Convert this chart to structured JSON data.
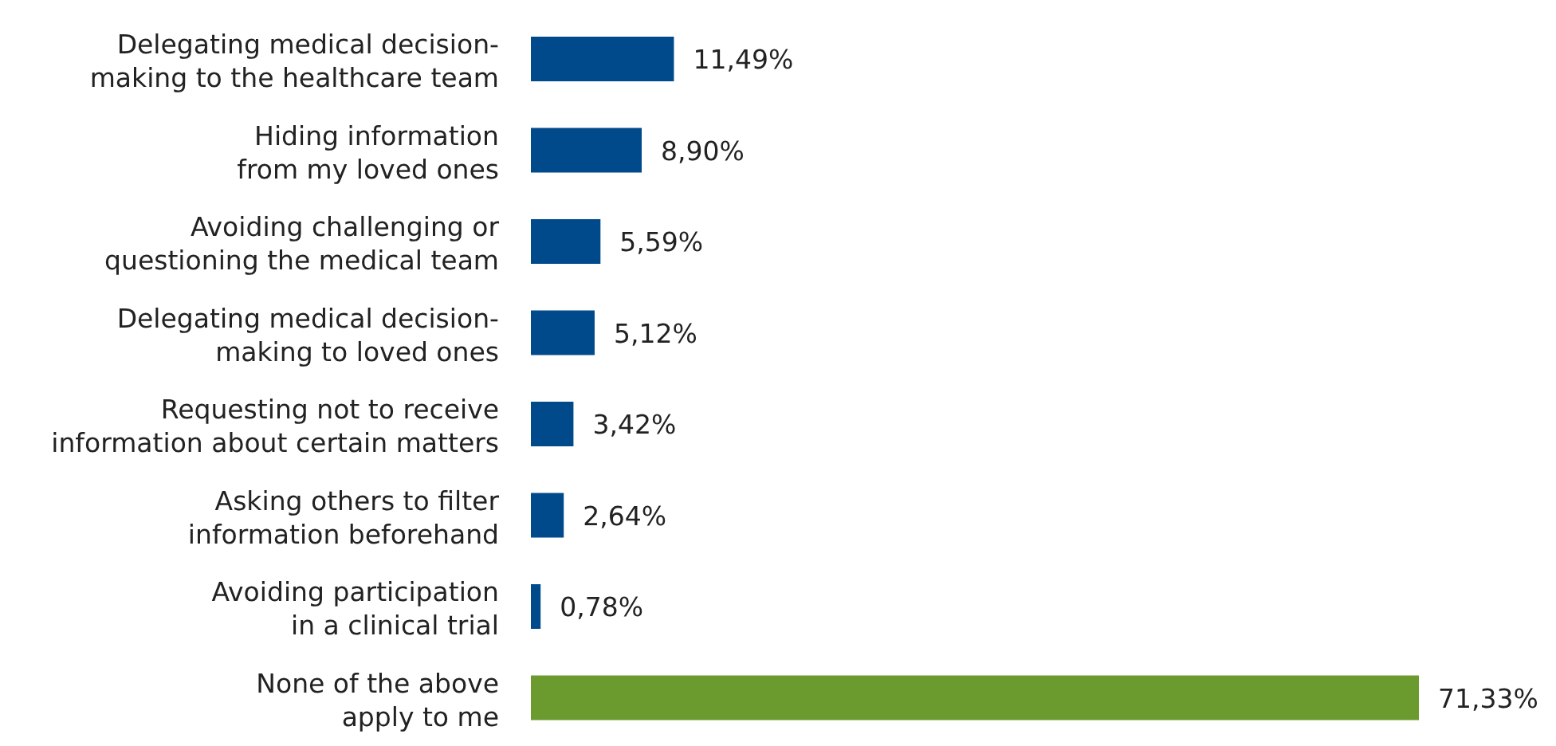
{
  "chart_data": {
    "type": "bar",
    "orientation": "horizontal",
    "categories": [
      "Delegating medical decision-making to the healthcare team",
      "Hiding information from my loved ones",
      "Avoiding challenging or questioning the medical team",
      "Delegating medical decision-making to loved ones",
      "Requesting not to receive information about certain matters",
      "Asking others to filter information beforehand",
      "Avoiding participation in a clinical trial",
      "None of the above apply to me"
    ],
    "values": [
      11.49,
      8.9,
      5.59,
      5.12,
      3.42,
      2.64,
      0.78,
      71.33
    ],
    "colors": [
      "#004a8c",
      "#004a8c",
      "#004a8c",
      "#004a8c",
      "#004a8c",
      "#004a8c",
      "#004a8c",
      "#6b9a2f"
    ],
    "value_labels": [
      "11,49%",
      "8,90%",
      "5,59%",
      "5,12%",
      "3,42%",
      "2,64%",
      "0,78%",
      "71,33%"
    ],
    "legend": false
  }
}
